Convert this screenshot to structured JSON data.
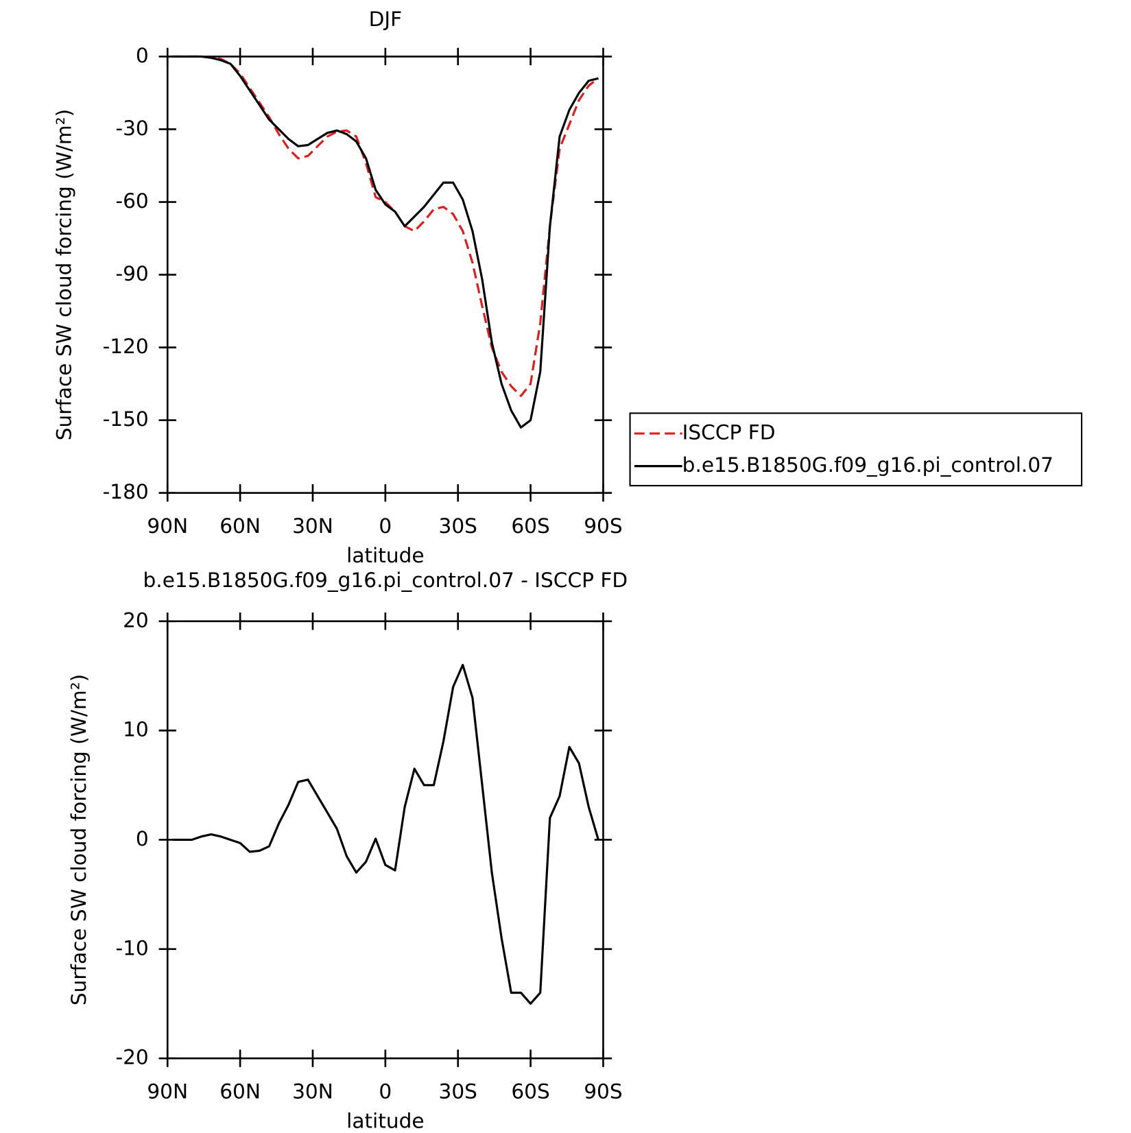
{
  "chart_data": [
    {
      "type": "line",
      "title": "DJF",
      "xlabel": "latitude",
      "ylabel": "Surface SW cloud forcing (W/m²)",
      "x": [
        88,
        84,
        80,
        76,
        72,
        68,
        64,
        60,
        56,
        52,
        48,
        44,
        40,
        36,
        32,
        28,
        24,
        20,
        16,
        12,
        8,
        4,
        0,
        -4,
        -8,
        -12,
        -16,
        -20,
        -24,
        -28,
        -32,
        -36,
        -40,
        -44,
        -48,
        -52,
        -56,
        -60,
        -64,
        -68,
        -72,
        -76,
        -80,
        -84,
        -88
      ],
      "series": [
        {
          "name": "ISCCP FD",
          "color": "#e41a1c",
          "dash": true,
          "values": [
            0,
            0,
            0,
            0,
            -0.5,
            -1,
            -3,
            -7,
            -13,
            -19,
            -25,
            -32,
            -38,
            -42,
            -41,
            -37,
            -33,
            -31,
            -30.5,
            -33,
            -44,
            -58,
            -60,
            -64,
            -70,
            -72,
            -68,
            -63,
            -62,
            -65,
            -72,
            -85,
            -103,
            -120,
            -130,
            -136,
            -140,
            -135,
            -110,
            -70,
            -38,
            -28,
            -18,
            -12,
            -9
          ]
        },
        {
          "name": "b.e15.B1850G.f09_g16.pi_control.07",
          "color": "#000000",
          "dash": false,
          "values": [
            0,
            0,
            0,
            0,
            -0.5,
            -1.5,
            -3,
            -8,
            -14,
            -20,
            -26,
            -30,
            -34,
            -37,
            -36.5,
            -34,
            -31.5,
            -30.5,
            -32,
            -35,
            -42,
            -55,
            -61,
            -64,
            -70,
            -66,
            -62,
            -57,
            -52,
            -52,
            -59,
            -72,
            -92,
            -118,
            -135,
            -146,
            -153,
            -150,
            -130,
            -70,
            -33,
            -22,
            -15,
            -10,
            -9
          ]
        }
      ],
      "xlim": [
        90,
        -90
      ],
      "xticks": [
        {
          "value": 90,
          "label": "90N"
        },
        {
          "value": 60,
          "label": "60N"
        },
        {
          "value": 30,
          "label": "30N"
        },
        0,
        {
          "value": -30,
          "label": "30S"
        },
        {
          "value": -60,
          "label": "60S"
        },
        {
          "value": -90,
          "label": "90S"
        }
      ],
      "ylim": [
        -180,
        0
      ],
      "yticks": [
        0,
        -30,
        -60,
        -90,
        -120,
        -150,
        -180
      ],
      "legend": "right"
    },
    {
      "type": "line",
      "title": "b.e15.B1850G.f09_g16.pi_control.07 - ISCCP FD",
      "xlabel": "latitude",
      "ylabel": "Surface SW cloud forcing (W/m²)",
      "x": [
        88,
        84,
        80,
        76,
        72,
        68,
        64,
        60,
        56,
        52,
        48,
        44,
        40,
        36,
        32,
        28,
        24,
        20,
        16,
        12,
        8,
        4,
        0,
        -4,
        -8,
        -12,
        -16,
        -20,
        -24,
        -28,
        -32,
        -36,
        -40,
        -44,
        -48,
        -52,
        -56,
        -60,
        -64,
        -68,
        -72,
        -76,
        -80,
        -84,
        -88
      ],
      "values": [
        0,
        0,
        0,
        0.3,
        0.5,
        0.3,
        0,
        -0.3,
        -1.1,
        -1,
        -0.6,
        1.5,
        3.2,
        5.3,
        5.5,
        4,
        2.5,
        1,
        -1.5,
        -3,
        -2,
        0.1,
        -2.3,
        -2.8,
        3,
        6.5,
        5,
        5,
        9,
        14,
        16,
        13,
        5,
        -3,
        -9,
        -14,
        -14,
        -15,
        -14,
        2,
        4,
        8.5,
        7,
        3,
        0
      ],
      "color": "#000000",
      "xlim": [
        90,
        -90
      ],
      "xticks": [
        {
          "value": 90,
          "label": "90N"
        },
        {
          "value": 60,
          "label": "60N"
        },
        {
          "value": 30,
          "label": "30N"
        },
        0,
        {
          "value": -30,
          "label": "30S"
        },
        {
          "value": -60,
          "label": "60S"
        },
        {
          "value": -90,
          "label": "90S"
        }
      ],
      "ylim": [
        -20,
        20
      ],
      "yticks": [
        20,
        10,
        0,
        -10,
        -20
      ]
    }
  ]
}
